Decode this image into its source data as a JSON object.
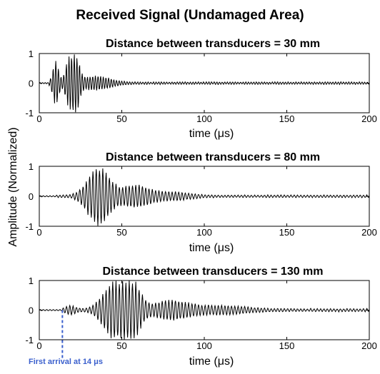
{
  "figure": {
    "title": "Received Signal (Undamaged Area)",
    "ylabel": "Amplitude (Normalized)"
  },
  "chart_data": [
    {
      "type": "line",
      "title": "Distance between transducers = 30 mm",
      "xlabel": "time (μs)",
      "xlim": [
        0,
        200
      ],
      "ylim": [
        -1,
        1
      ],
      "xticks": [
        "0",
        "50",
        "100",
        "150",
        "200"
      ],
      "yticks": [
        "-1",
        "0",
        "1"
      ],
      "color": "#000000",
      "signal": {
        "onset": 6,
        "carrier_period_us": 1.6,
        "bursts": [
          {
            "center": 10,
            "width": 2.5,
            "amp": 0.75
          },
          {
            "center": 17.5,
            "width": 2.5,
            "amp": 0.7
          },
          {
            "center": 22,
            "width": 3,
            "amp": 1.0
          },
          {
            "center": 34,
            "width": 12,
            "amp": 0.22
          }
        ],
        "tail_level": 0.05,
        "tail_end": 200
      }
    },
    {
      "type": "line",
      "title": "Distance between transducers = 80 mm",
      "xlabel": "time (μs)",
      "xlim": [
        0,
        200
      ],
      "ylim": [
        -1,
        1
      ],
      "xticks": [
        "0",
        "50",
        "100",
        "150",
        "200"
      ],
      "yticks": [
        "-1",
        "0",
        "1"
      ],
      "color": "#000000",
      "signal": {
        "onset": 10,
        "carrier_period_us": 2.0,
        "bursts": [
          {
            "center": 36,
            "width": 9,
            "amp": 1.0
          },
          {
            "center": 58,
            "width": 11,
            "amp": 0.35
          },
          {
            "center": 80,
            "width": 14,
            "amp": 0.12
          }
        ],
        "tail_level": 0.05,
        "tail_end": 200
      }
    },
    {
      "type": "line",
      "title": "Distance between transducers = 130 mm",
      "xlabel": "time (μs)",
      "xlim": [
        0,
        200
      ],
      "ylim": [
        -1,
        1
      ],
      "xticks": [
        "0",
        "50",
        "100",
        "150",
        "200"
      ],
      "yticks": [
        "-1",
        "0",
        "1"
      ],
      "color": "#000000",
      "signal": {
        "onset": 14,
        "carrier_period_us": 2.0,
        "bursts": [
          {
            "center": 19,
            "width": 4,
            "amp": 0.12
          },
          {
            "center": 45,
            "width": 9,
            "amp": 0.9
          },
          {
            "center": 56,
            "width": 7,
            "amp": 0.95
          },
          {
            "center": 80,
            "width": 14,
            "amp": 0.3
          },
          {
            "center": 110,
            "width": 20,
            "amp": 0.12
          }
        ],
        "tail_level": 0.06,
        "tail_end": 200
      },
      "annotation": {
        "text": "First arrival at 14 μs",
        "x": 14,
        "color": "#3a5fcd"
      }
    }
  ]
}
